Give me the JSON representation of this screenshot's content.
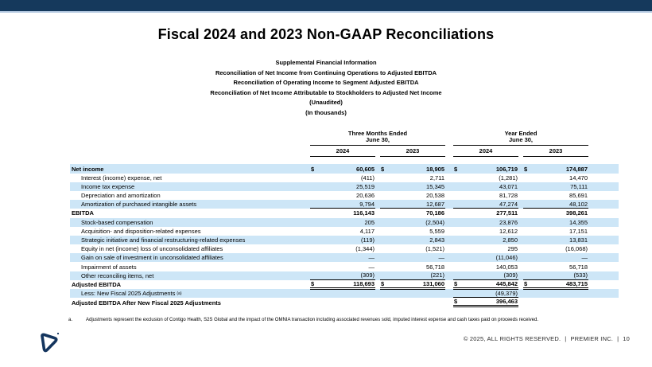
{
  "slide": {
    "title": "Fiscal 2024 and 2023 Non-GAAP Reconciliations",
    "subtitles": [
      "Supplemental Financial Information",
      "Reconciliation of Net Income from Continuing Operations to Adjusted EBITDA",
      "Reconciliation of Operating Income to Segment Adjusted EBITDA",
      "Reconciliation of Net Income Attributable to Stockholders to Adjusted Net Income",
      "(Unaudited)",
      "(In thousands)"
    ]
  },
  "table": {
    "groups": [
      {
        "line1": "Three Months Ended",
        "line2": "June 30,"
      },
      {
        "line1": "Year Ended",
        "line2": "June 30,"
      }
    ],
    "years": [
      "2024",
      "2023",
      "2024",
      "2023"
    ],
    "rows": [
      {
        "label": "Net income",
        "bold": true,
        "shaded": true,
        "dollar": [
          1,
          1,
          1,
          1
        ],
        "values": [
          "60,605",
          "18,905",
          "106,719",
          "174,887"
        ]
      },
      {
        "label": "Interest (income) expense, net",
        "indent": true,
        "values": [
          "(411)",
          "2,711",
          "(1,281)",
          "14,470"
        ]
      },
      {
        "label": "Income tax expense",
        "indent": true,
        "shaded": true,
        "values": [
          "25,519",
          "15,345",
          "43,071",
          "75,111"
        ]
      },
      {
        "label": "Depreciation and amortization",
        "indent": true,
        "values": [
          "20,636",
          "20,538",
          "81,728",
          "85,691"
        ]
      },
      {
        "label": "Amortization of purchased intangible assets",
        "indent": true,
        "shaded": true,
        "values": [
          "9,794",
          "12,687",
          "47,274",
          "48,102"
        ],
        "u": [
          1,
          1,
          1,
          1
        ]
      },
      {
        "label": "EBITDA",
        "bold": true,
        "values": [
          "116,143",
          "70,186",
          "277,511",
          "398,261"
        ]
      },
      {
        "label": "Stock-based compensation",
        "indent": true,
        "shaded": true,
        "values": [
          "205",
          "(2,504)",
          "23,876",
          "14,355"
        ]
      },
      {
        "label": "Acquisition- and disposition-related expenses",
        "indent": true,
        "values": [
          "4,117",
          "5,559",
          "12,612",
          "17,151"
        ]
      },
      {
        "label": "Strategic initiative and financial restructuring-related expenses",
        "indent": true,
        "shaded": true,
        "values": [
          "(119)",
          "2,843",
          "2,850",
          "13,831"
        ]
      },
      {
        "label": "Equity in net (income) loss of unconsolidated affiliates",
        "indent": true,
        "values": [
          "(1,344)",
          "(1,521)",
          "295",
          "(16,068)"
        ]
      },
      {
        "label": "Gain on sale of investment in unconsolidated affiliates",
        "indent": true,
        "shaded": true,
        "values": [
          "—",
          "—",
          "(11,046)",
          "—"
        ]
      },
      {
        "label": "Impairment of assets",
        "indent": true,
        "values": [
          "—",
          "56,718",
          "140,053",
          "56,718"
        ]
      },
      {
        "label": "Other reconciling items, net",
        "indent": true,
        "shaded": true,
        "values": [
          "(309)",
          "(221)",
          "(309)",
          "(533)"
        ],
        "u": [
          1,
          1,
          1,
          1
        ]
      },
      {
        "label": "Adjusted EBITDA",
        "bold": true,
        "dollar": [
          1,
          1,
          1,
          1
        ],
        "values": [
          "118,693",
          "131,060",
          "445,842",
          "483,715"
        ],
        "u": [
          2,
          2,
          2,
          2
        ]
      },
      {
        "label": "Less: New Fiscal 2025 Adjustments",
        "sup": "(a)",
        "indent": true,
        "shaded": true,
        "values": [
          "",
          "",
          "(49,379)",
          ""
        ],
        "u": [
          0,
          0,
          1,
          0
        ]
      },
      {
        "label": "Adjusted EBITDA After New Fiscal 2025 Adjustments",
        "bold": true,
        "dollar": [
          0,
          0,
          1,
          0
        ],
        "values": [
          "",
          "",
          "396,463",
          ""
        ],
        "u": [
          0,
          0,
          2,
          0
        ]
      }
    ]
  },
  "footnote": {
    "marker": "a.",
    "text": "Adjustments represent the exclusion of Contigo Health, S2S Global and the impact of the OMNIA transaction including associated revenues sold, imputed interest expense and cash taxes paid on proceeds received."
  },
  "footer": {
    "copyright": "© 2025, ALL RIGHTS RESERVED.",
    "separator": "|",
    "company": "PREMIER INC.",
    "page_number": "10"
  },
  "colors": {
    "top_bar": "#15395c",
    "top_bar_accent": "#b9cde4",
    "shaded_row": "#cde6f7",
    "logo_navy": "#14355e",
    "text": "#000000"
  }
}
